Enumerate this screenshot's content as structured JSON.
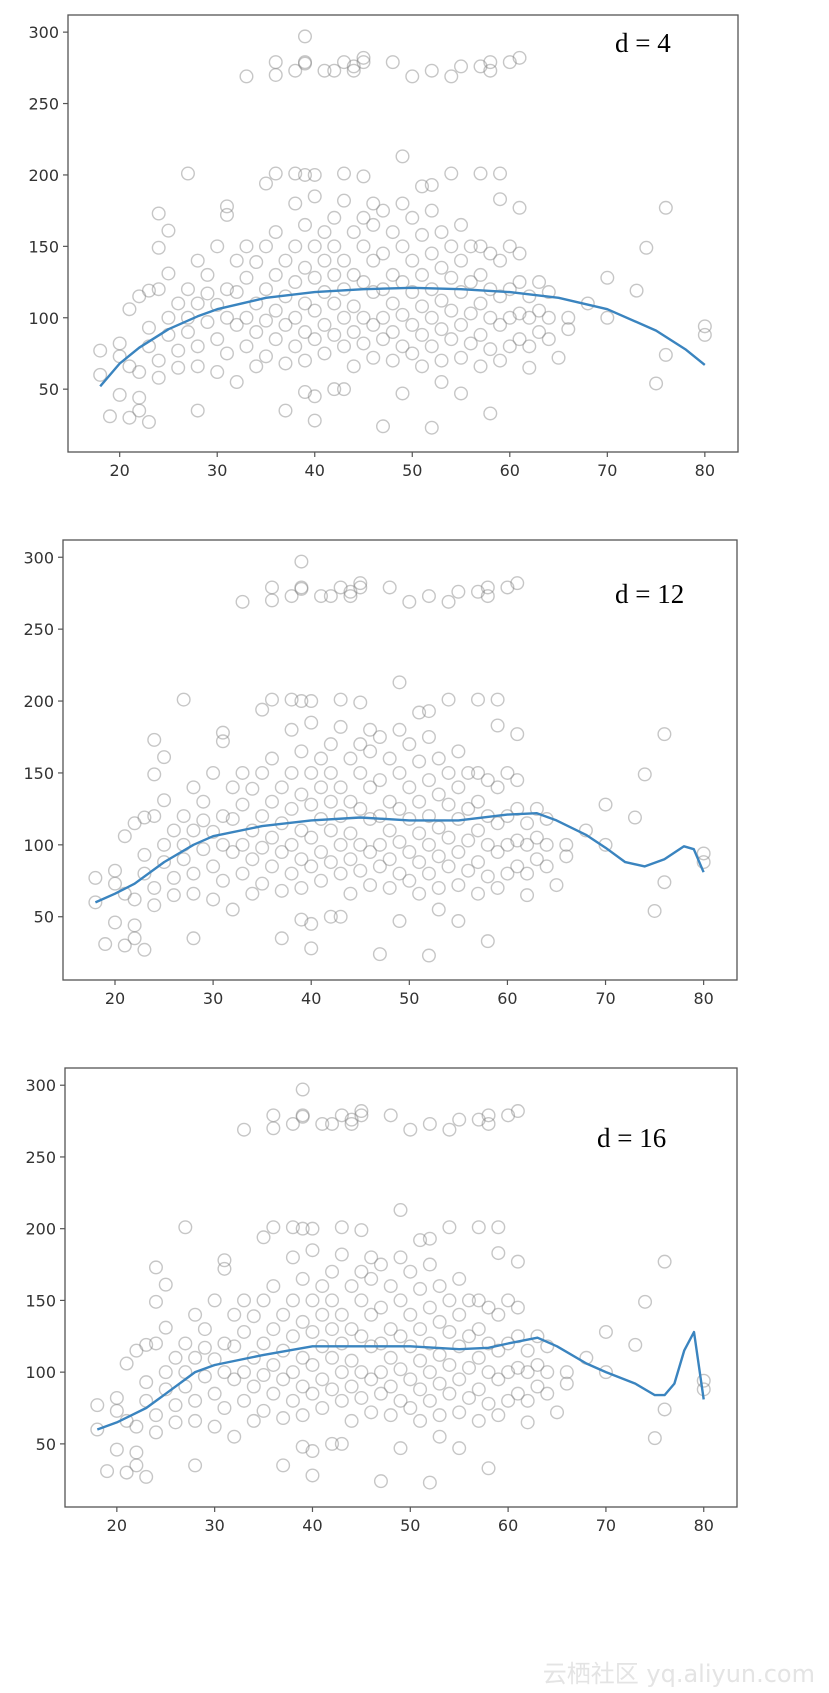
{
  "watermark": "云栖社区 yq.aliyun.com",
  "chart_data": {
    "type": "scatter",
    "shared_scatter": {
      "marker": "open-circle",
      "marker_color": "#808080",
      "points": [
        [
          33,
          269
        ],
        [
          36,
          279
        ],
        [
          36,
          270
        ],
        [
          38,
          273
        ],
        [
          39,
          297
        ],
        [
          39,
          279
        ],
        [
          39,
          278
        ],
        [
          41,
          273
        ],
        [
          42,
          273
        ],
        [
          43,
          279
        ],
        [
          44,
          273
        ],
        [
          44,
          276
        ],
        [
          45,
          279
        ],
        [
          45,
          282
        ],
        [
          48,
          279
        ],
        [
          50,
          269
        ],
        [
          52,
          273
        ],
        [
          54,
          269
        ],
        [
          55,
          276
        ],
        [
          57,
          276
        ],
        [
          58,
          279
        ],
        [
          58,
          273
        ],
        [
          60,
          279
        ],
        [
          61,
          282
        ],
        [
          18,
          77
        ],
        [
          18,
          60
        ],
        [
          19,
          31
        ],
        [
          21,
          30
        ],
        [
          22,
          44
        ],
        [
          20,
          46
        ],
        [
          23,
          27
        ],
        [
          22,
          35
        ],
        [
          28,
          35
        ],
        [
          37,
          35
        ],
        [
          39,
          48
        ],
        [
          40,
          28
        ],
        [
          40,
          45
        ],
        [
          42,
          50
        ],
        [
          43,
          50
        ],
        [
          47,
          24
        ],
        [
          49,
          47
        ],
        [
          52,
          23
        ],
        [
          53,
          55
        ],
        [
          55,
          47
        ],
        [
          58,
          33
        ],
        [
          27,
          201
        ],
        [
          24,
          173
        ],
        [
          25,
          161
        ],
        [
          24,
          149
        ],
        [
          31,
          178
        ],
        [
          31,
          172
        ],
        [
          35,
          194
        ],
        [
          36,
          201
        ],
        [
          38,
          201
        ],
        [
          39,
          200
        ],
        [
          40,
          200
        ],
        [
          43,
          201
        ],
        [
          45,
          199
        ],
        [
          46,
          180
        ],
        [
          49,
          213
        ],
        [
          51,
          192
        ],
        [
          52,
          193
        ],
        [
          54,
          201
        ],
        [
          57,
          201
        ],
        [
          59,
          201
        ],
        [
          59,
          183
        ],
        [
          61,
          177
        ],
        [
          76,
          177
        ],
        [
          74,
          149
        ],
        [
          70,
          128
        ],
        [
          73,
          119
        ],
        [
          75,
          54
        ],
        [
          76,
          74
        ],
        [
          80,
          94
        ],
        [
          80,
          88
        ],
        [
          68,
          110
        ],
        [
          66,
          100
        ],
        [
          70,
          100
        ],
        [
          64,
          85
        ],
        [
          62,
          65
        ],
        [
          65,
          72
        ],
        [
          66,
          92
        ],
        [
          64,
          118
        ],
        [
          63,
          125
        ],
        [
          20,
          82
        ],
        [
          20,
          73
        ],
        [
          21,
          66
        ],
        [
          21,
          106
        ],
        [
          22,
          115
        ],
        [
          22,
          62
        ],
        [
          23,
          80
        ],
        [
          23,
          119
        ],
        [
          23,
          93
        ],
        [
          24,
          120
        ],
        [
          24,
          70
        ],
        [
          24,
          58
        ],
        [
          25,
          131
        ],
        [
          25,
          100
        ],
        [
          25,
          88
        ],
        [
          26,
          110
        ],
        [
          26,
          77
        ],
        [
          26,
          65
        ],
        [
          27,
          100
        ],
        [
          27,
          120
        ],
        [
          27,
          90
        ],
        [
          28,
          140
        ],
        [
          28,
          110
        ],
        [
          28,
          66
        ],
        [
          28,
          80
        ],
        [
          29,
          97
        ],
        [
          29,
          117
        ],
        [
          29,
          130
        ],
        [
          30,
          150
        ],
        [
          30,
          109
        ],
        [
          30,
          85
        ],
        [
          30,
          62
        ],
        [
          31,
          120
        ],
        [
          31,
          100
        ],
        [
          31,
          75
        ],
        [
          32,
          118
        ],
        [
          32,
          140
        ],
        [
          32,
          95
        ],
        [
          32,
          55
        ],
        [
          33,
          150
        ],
        [
          33,
          128
        ],
        [
          33,
          100
        ],
        [
          33,
          80
        ],
        [
          34,
          139
        ],
        [
          34,
          110
        ],
        [
          34,
          90
        ],
        [
          34,
          66
        ],
        [
          35,
          150
        ],
        [
          35,
          120
        ],
        [
          35,
          98
        ],
        [
          35,
          73
        ],
        [
          36,
          160
        ],
        [
          36,
          130
        ],
        [
          36,
          105
        ],
        [
          36,
          85
        ],
        [
          37,
          140
        ],
        [
          37,
          115
        ],
        [
          37,
          95
        ],
        [
          37,
          68
        ],
        [
          38,
          180
        ],
        [
          38,
          150
        ],
        [
          38,
          125
        ],
        [
          38,
          100
        ],
        [
          38,
          80
        ],
        [
          39,
          165
        ],
        [
          39,
          135
        ],
        [
          39,
          110
        ],
        [
          39,
          90
        ],
        [
          39,
          70
        ],
        [
          40,
          185
        ],
        [
          40,
          150
        ],
        [
          40,
          128
        ],
        [
          40,
          105
        ],
        [
          40,
          85
        ],
        [
          41,
          160
        ],
        [
          41,
          140
        ],
        [
          41,
          118
        ],
        [
          41,
          95
        ],
        [
          41,
          75
        ],
        [
          42,
          170
        ],
        [
          42,
          150
        ],
        [
          42,
          130
        ],
        [
          42,
          110
        ],
        [
          42,
          88
        ],
        [
          43,
          182
        ],
        [
          43,
          140
        ],
        [
          43,
          120
        ],
        [
          43,
          100
        ],
        [
          43,
          80
        ],
        [
          44,
          160
        ],
        [
          44,
          130
        ],
        [
          44,
          108
        ],
        [
          44,
          90
        ],
        [
          44,
          66
        ],
        [
          45,
          170
        ],
        [
          45,
          150
        ],
        [
          45,
          125
        ],
        [
          45,
          100
        ],
        [
          45,
          82
        ],
        [
          46,
          165
        ],
        [
          46,
          140
        ],
        [
          46,
          118
        ],
        [
          46,
          95
        ],
        [
          46,
          72
        ],
        [
          47,
          175
        ],
        [
          47,
          145
        ],
        [
          47,
          120
        ],
        [
          47,
          100
        ],
        [
          47,
          85
        ],
        [
          48,
          160
        ],
        [
          48,
          130
        ],
        [
          48,
          110
        ],
        [
          48,
          90
        ],
        [
          48,
          70
        ],
        [
          49,
          180
        ],
        [
          49,
          150
        ],
        [
          49,
          125
        ],
        [
          49,
          102
        ],
        [
          49,
          80
        ],
        [
          50,
          170
        ],
        [
          50,
          140
        ],
        [
          50,
          118
        ],
        [
          50,
          95
        ],
        [
          50,
          75
        ],
        [
          51,
          158
        ],
        [
          51,
          130
        ],
        [
          51,
          108
        ],
        [
          51,
          88
        ],
        [
          51,
          66
        ],
        [
          52,
          175
        ],
        [
          52,
          145
        ],
        [
          52,
          120
        ],
        [
          52,
          100
        ],
        [
          52,
          80
        ],
        [
          53,
          160
        ],
        [
          53,
          135
        ],
        [
          53,
          112
        ],
        [
          53,
          92
        ],
        [
          53,
          70
        ],
        [
          54,
          150
        ],
        [
          54,
          128
        ],
        [
          54,
          105
        ],
        [
          54,
          85
        ],
        [
          55,
          165
        ],
        [
          55,
          140
        ],
        [
          55,
          118
        ],
        [
          55,
          95
        ],
        [
          55,
          72
        ],
        [
          56,
          150
        ],
        [
          56,
          125
        ],
        [
          56,
          103
        ],
        [
          56,
          82
        ],
        [
          57,
          150
        ],
        [
          57,
          130
        ],
        [
          57,
          110
        ],
        [
          57,
          88
        ],
        [
          57,
          66
        ],
        [
          58,
          145
        ],
        [
          58,
          120
        ],
        [
          58,
          100
        ],
        [
          58,
          78
        ],
        [
          59,
          140
        ],
        [
          59,
          115
        ],
        [
          59,
          95
        ],
        [
          59,
          70
        ],
        [
          60,
          150
        ],
        [
          60,
          120
        ],
        [
          60,
          100
        ],
        [
          60,
          80
        ],
        [
          61,
          145
        ],
        [
          61,
          125
        ],
        [
          61,
          103
        ],
        [
          61,
          85
        ],
        [
          62,
          115
        ],
        [
          62,
          100
        ],
        [
          62,
          80
        ],
        [
          63,
          105
        ],
        [
          63,
          90
        ],
        [
          64,
          100
        ]
      ]
    },
    "panels": [
      {
        "annotation": "d = 4",
        "xlim": [
          14.7,
          83.4
        ],
        "ylim": [
          6,
          312
        ],
        "xticks": [
          20,
          30,
          40,
          50,
          60,
          70,
          80
        ],
        "yticks": [
          50,
          100,
          150,
          200,
          250,
          300
        ],
        "grid": false,
        "fit_color": "#3a84bf",
        "fit": [
          [
            18,
            52
          ],
          [
            20,
            68
          ],
          [
            22,
            79
          ],
          [
            25,
            92
          ],
          [
            28,
            101
          ],
          [
            30,
            106
          ],
          [
            35,
            114
          ],
          [
            40,
            118
          ],
          [
            45,
            120
          ],
          [
            50,
            121
          ],
          [
            55,
            120
          ],
          [
            60,
            118
          ],
          [
            65,
            114
          ],
          [
            70,
            106
          ],
          [
            75,
            91
          ],
          [
            78,
            78
          ],
          [
            80,
            67
          ]
        ]
      },
      {
        "annotation": "d = 12",
        "xlim": [
          14.7,
          83.4
        ],
        "ylim": [
          6,
          312
        ],
        "xticks": [
          20,
          30,
          40,
          50,
          60,
          70,
          80
        ],
        "yticks": [
          50,
          100,
          150,
          200,
          250,
          300
        ],
        "grid": false,
        "fit_color": "#3a84bf",
        "fit": [
          [
            18,
            60
          ],
          [
            20,
            66
          ],
          [
            22,
            73
          ],
          [
            25,
            88
          ],
          [
            28,
            100
          ],
          [
            30,
            106
          ],
          [
            35,
            113
          ],
          [
            40,
            117
          ],
          [
            45,
            119
          ],
          [
            50,
            117
          ],
          [
            55,
            117
          ],
          [
            60,
            121
          ],
          [
            63,
            122
          ],
          [
            65,
            117
          ],
          [
            68,
            107
          ],
          [
            70,
            98
          ],
          [
            72,
            88
          ],
          [
            74,
            85
          ],
          [
            76,
            90
          ],
          [
            78,
            99
          ],
          [
            79,
            97
          ],
          [
            80,
            81
          ]
        ]
      },
      {
        "annotation": "d = 16",
        "xlim": [
          14.7,
          83.4
        ],
        "ylim": [
          6,
          312
        ],
        "xticks": [
          20,
          30,
          40,
          50,
          60,
          70,
          80
        ],
        "yticks": [
          50,
          100,
          150,
          200,
          250,
          300
        ],
        "grid": false,
        "fit_color": "#3a84bf",
        "fit": [
          [
            18,
            60
          ],
          [
            20,
            65
          ],
          [
            23,
            75
          ],
          [
            25,
            85
          ],
          [
            28,
            100
          ],
          [
            30,
            105
          ],
          [
            35,
            112
          ],
          [
            40,
            118
          ],
          [
            45,
            118
          ],
          [
            50,
            118
          ],
          [
            55,
            116
          ],
          [
            58,
            117
          ],
          [
            60,
            120
          ],
          [
            63,
            124
          ],
          [
            65,
            118
          ],
          [
            68,
            106
          ],
          [
            70,
            100
          ],
          [
            73,
            92
          ],
          [
            75,
            84
          ],
          [
            76,
            84
          ],
          [
            77,
            92
          ],
          [
            78,
            115
          ],
          [
            79,
            128
          ],
          [
            80,
            81
          ]
        ]
      }
    ]
  }
}
